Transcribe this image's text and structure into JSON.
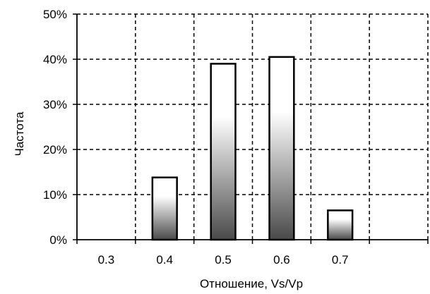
{
  "chart_data": {
    "type": "bar",
    "categories": [
      "0.3",
      "0.4",
      "0.5",
      "0.6",
      "0.7"
    ],
    "values": [
      0,
      13.8,
      39.0,
      40.5,
      6.5
    ],
    "title": "",
    "xlabel": "Отношение, Vs/Vp",
    "ylabel": "Частота",
    "ylim": [
      0,
      50
    ],
    "yticks": [
      "0%",
      "10%",
      "20%",
      "30%",
      "40%",
      "50%"
    ],
    "grid": true,
    "bar_fill": "vertical gradient: white at top to dark gray at bottom",
    "colors": {
      "bar_top": "#ffffff",
      "bar_bottom": "#4a4a4a",
      "grid": "#000000"
    }
  }
}
